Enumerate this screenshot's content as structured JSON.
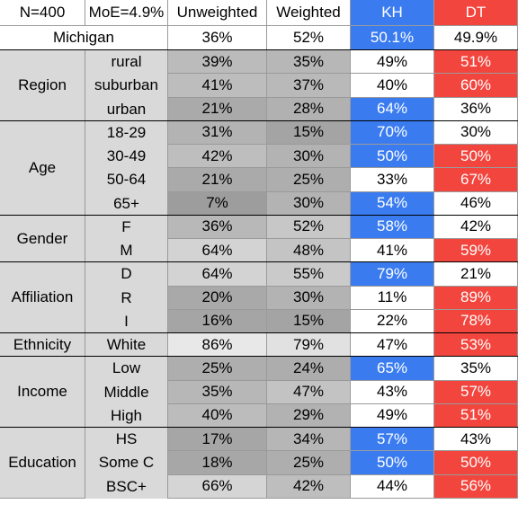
{
  "header": [
    "N=400",
    "MoE=4.9%",
    "Unweighted",
    "Weighted",
    "KH",
    "DT"
  ],
  "total": {
    "label": "Michigan",
    "values": [
      "36%",
      "52%",
      "50.1%",
      "49.9%"
    ]
  },
  "groups": [
    {
      "name": "Region",
      "rows": [
        {
          "label": "rural",
          "values": [
            "39%",
            "35%",
            "49%",
            "51%"
          ]
        },
        {
          "label": "suburban",
          "values": [
            "41%",
            "37%",
            "40%",
            "60%"
          ]
        },
        {
          "label": "urban",
          "values": [
            "21%",
            "28%",
            "64%",
            "36%"
          ]
        }
      ]
    },
    {
      "name": "Age",
      "rows": [
        {
          "label": "18-29",
          "values": [
            "31%",
            "15%",
            "70%",
            "30%"
          ]
        },
        {
          "label": "30-49",
          "values": [
            "42%",
            "30%",
            "50%",
            "50%"
          ]
        },
        {
          "label": "50-64",
          "values": [
            "21%",
            "25%",
            "33%",
            "67%"
          ]
        },
        {
          "label": "65+",
          "values": [
            "7%",
            "30%",
            "54%",
            "46%"
          ]
        }
      ]
    },
    {
      "name": "Gender",
      "rows": [
        {
          "label": "F",
          "values": [
            "36%",
            "52%",
            "58%",
            "42%"
          ]
        },
        {
          "label": "M",
          "values": [
            "64%",
            "48%",
            "41%",
            "59%"
          ]
        }
      ]
    },
    {
      "name": "Affiliation",
      "rows": [
        {
          "label": "D",
          "values": [
            "64%",
            "55%",
            "79%",
            "21%"
          ]
        },
        {
          "label": "R",
          "values": [
            "20%",
            "30%",
            "11%",
            "89%"
          ]
        },
        {
          "label": "I",
          "values": [
            "16%",
            "15%",
            "22%",
            "78%"
          ]
        }
      ]
    },
    {
      "name": "Ethnicity",
      "rows": [
        {
          "label": "White",
          "values": [
            "86%",
            "79%",
            "47%",
            "53%"
          ]
        }
      ]
    },
    {
      "name": "Income",
      "rows": [
        {
          "label": "Low",
          "values": [
            "25%",
            "24%",
            "65%",
            "35%"
          ]
        },
        {
          "label": "Middle",
          "values": [
            "35%",
            "47%",
            "43%",
            "57%"
          ]
        },
        {
          "label": "High",
          "values": [
            "40%",
            "29%",
            "49%",
            "51%"
          ]
        }
      ]
    },
    {
      "name": "Education",
      "rows": [
        {
          "label": "HS",
          "values": [
            "17%",
            "34%",
            "57%",
            "43%"
          ]
        },
        {
          "label": "Some C",
          "values": [
            "18%",
            "25%",
            "50%",
            "50%"
          ]
        },
        {
          "label": "BSC+",
          "values": [
            "66%",
            "42%",
            "44%",
            "56%"
          ]
        }
      ]
    }
  ]
}
